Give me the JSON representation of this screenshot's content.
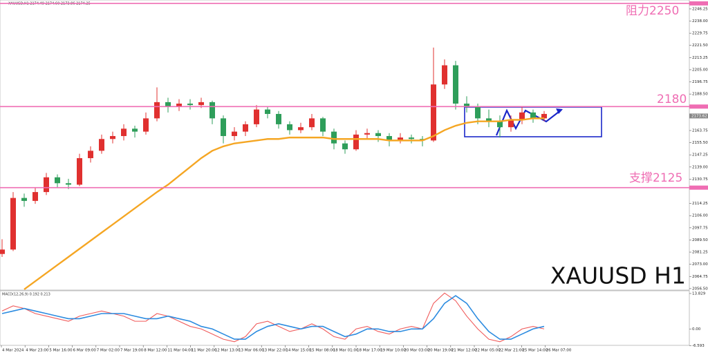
{
  "chart_data": {
    "type": "candlestick",
    "header": "XAUUSD,H1 2174.49 2174.60 2173.86 2174.25",
    "title": "XAUUSD H1",
    "up_color": "#e0302f",
    "down_color": "#2e9e5a",
    "ma_color": "#f5a623",
    "level_color": "#ef6db3",
    "levels": [
      2250,
      2180,
      2125
    ],
    "annotations": [
      "阻力2250",
      "2180",
      "支撑2125"
    ],
    "current_price": {
      "value": 2173.62,
      "label": "2173.62"
    },
    "ylim": [
      2055.5,
      2252.3
    ],
    "yticks": [
      {
        "value": 2246.25,
        "label": "2246.25"
      },
      {
        "value": 2238.0,
        "label": "2238.00"
      },
      {
        "value": 2229.75,
        "label": "2229.75"
      },
      {
        "value": 2221.5,
        "label": "2221.50"
      },
      {
        "value": 2213.25,
        "label": "2213.25"
      },
      {
        "value": 2205.0,
        "label": "2205.00"
      },
      {
        "value": 2196.75,
        "label": "2196.75"
      },
      {
        "value": 2188.5,
        "label": "2188.50"
      },
      {
        "value": 2163.75,
        "label": "2163.75"
      },
      {
        "value": 2155.5,
        "label": "2155.50"
      },
      {
        "value": 2147.25,
        "label": "2147.25"
      },
      {
        "value": 2139.0,
        "label": "2139.00"
      },
      {
        "value": 2130.75,
        "label": "2130.75"
      },
      {
        "value": 2114.25,
        "label": "2114.25"
      },
      {
        "value": 2106.0,
        "label": "2106.00"
      },
      {
        "value": 2097.75,
        "label": "2097.75"
      },
      {
        "value": 2089.5,
        "label": "2089.50"
      },
      {
        "value": 2081.25,
        "label": "2081.25"
      },
      {
        "value": 2073.0,
        "label": "2073.00"
      },
      {
        "value": 2064.75,
        "label": "2064.75"
      },
      {
        "value": 2056.5,
        "label": "2056.50"
      }
    ],
    "x_labels": [
      "4 Mar 2024",
      "4 Mar 23:00",
      "5 Mar 16:00",
      "6 Mar 09:00",
      "7 Mar 02:00",
      "7 Mar 19:00",
      "8 Mar 12:00",
      "11 Mar 04:00",
      "11 Mar 20:00",
      "12 Mar 13:00",
      "13 Mar 06:00",
      "13 Mar 22:00",
      "14 Mar 15:00",
      "15 Mar 08:00",
      "18 Mar 01:00",
      "18 Mar 17:00",
      "19 Mar 10:00",
      "20 Mar 03:00",
      "20 Mar 19:00",
      "21 Mar 12:00",
      "22 Mar 05:00",
      "22 Mar 21:00",
      "25 Mar 14:00",
      "26 Mar 07:00"
    ],
    "candles": [
      [
        2080,
        2090,
        2078,
        2083
      ],
      [
        2083,
        2122,
        2082,
        2118
      ],
      [
        2118,
        2121,
        2112,
        2116
      ],
      [
        2116,
        2125,
        2114,
        2122
      ],
      [
        2122,
        2135,
        2120,
        2132
      ],
      [
        2132,
        2134,
        2125,
        2128
      ],
      [
        2128,
        2131,
        2124,
        2127
      ],
      [
        2127,
        2148,
        2126,
        2145
      ],
      [
        2145,
        2153,
        2142,
        2150
      ],
      [
        2150,
        2161,
        2148,
        2158
      ],
      [
        2158,
        2163,
        2155,
        2160
      ],
      [
        2160,
        2168,
        2157,
        2165
      ],
      [
        2165,
        2167,
        2159,
        2163
      ],
      [
        2163,
        2176,
        2161,
        2172
      ],
      [
        2172,
        2193,
        2170,
        2183
      ],
      [
        2183,
        2186,
        2176,
        2180
      ],
      [
        2180,
        2185,
        2177,
        2182
      ],
      [
        2182,
        2185,
        2178,
        2181
      ],
      [
        2181,
        2186,
        2179,
        2183
      ],
      [
        2183,
        2184,
        2168,
        2172
      ],
      [
        2172,
        2174,
        2155,
        2160
      ],
      [
        2160,
        2166,
        2157,
        2163
      ],
      [
        2163,
        2170,
        2160,
        2168
      ],
      [
        2168,
        2181,
        2166,
        2178
      ],
      [
        2178,
        2180,
        2172,
        2175
      ],
      [
        2175,
        2177,
        2165,
        2168
      ],
      [
        2168,
        2170,
        2161,
        2164
      ],
      [
        2164,
        2169,
        2162,
        2166
      ],
      [
        2166,
        2175,
        2164,
        2172
      ],
      [
        2172,
        2173,
        2160,
        2163
      ],
      [
        2163,
        2165,
        2151,
        2155
      ],
      [
        2155,
        2157,
        2148,
        2151
      ],
      [
        2151,
        2164,
        2150,
        2161
      ],
      [
        2161,
        2165,
        2158,
        2162
      ],
      [
        2162,
        2164,
        2156,
        2160
      ],
      [
        2160,
        2162,
        2153,
        2157
      ],
      [
        2157,
        2162,
        2155,
        2159
      ],
      [
        2159,
        2161,
        2155,
        2158
      ],
      [
        2158,
        2160,
        2153,
        2157
      ],
      [
        2157,
        2220,
        2156,
        2195
      ],
      [
        2195,
        2212,
        2192,
        2208
      ],
      [
        2208,
        2211,
        2178,
        2182
      ],
      [
        2182,
        2187,
        2176,
        2180
      ],
      [
        2180,
        2182,
        2168,
        2172
      ],
      [
        2172,
        2178,
        2166,
        2170
      ],
      [
        2170,
        2174,
        2159,
        2166
      ],
      [
        2166,
        2174,
        2163,
        2171
      ],
      [
        2171,
        2180,
        2168,
        2176
      ],
      [
        2176,
        2178,
        2169,
        2172
      ],
      [
        2172,
        2177,
        2170,
        2175
      ]
    ],
    "ma": [
      null,
      null,
      2056,
      2061.5,
      2067,
      2072.5,
      2078,
      2083.5,
      2089,
      2094.5,
      2100,
      2105.5,
      2111,
      2116.5,
      2122,
      2127,
      2133,
      2139,
      2145,
      2150,
      2153,
      2155,
      2156,
      2157,
      2158,
      2158,
      2159,
      2159,
      2159,
      2159,
      2158,
      2158,
      2158,
      2158,
      2158,
      2157,
      2157,
      2157,
      2157,
      2160,
      2164,
      2167,
      2169,
      2170,
      2170,
      2170,
      2171,
      2171,
      2172,
      2172
    ],
    "macd": {
      "header": "MACD(12,26,9) 0.192 0.213",
      "ylim": [
        -6.4,
        14.9
      ],
      "yticks": [
        {
          "value": 13.829,
          "label": "13.829"
        },
        {
          "value": 0,
          "label": "0.00"
        },
        {
          "value": -6.593,
          "label": "-6.593"
        }
      ],
      "series": [
        {
          "name": "MACD",
          "color": "#f05a5a",
          "values": [
            7,
            9,
            8,
            6,
            5,
            4,
            3,
            5,
            6,
            7,
            6,
            5,
            3,
            3,
            6,
            5,
            3,
            1,
            0,
            -2,
            -4,
            -5,
            -3,
            2,
            3,
            1,
            -1,
            0,
            2,
            0,
            -3,
            -4,
            0,
            1,
            -1,
            -2,
            0,
            1,
            0,
            10,
            14,
            11,
            5,
            0,
            -4,
            -5,
            -3,
            0,
            1,
            0
          ]
        },
        {
          "name": "MA(9)",
          "color": "#2b8be0",
          "values": [
            6,
            7,
            8,
            7,
            6,
            5,
            4,
            4,
            5,
            6,
            6,
            6,
            5,
            4,
            4,
            5,
            4,
            3,
            1,
            0,
            -2,
            -4,
            -4,
            -1,
            1,
            2,
            1,
            0,
            1,
            1,
            -1,
            -3,
            -2,
            0,
            0,
            -1,
            -1,
            0,
            0,
            4,
            10,
            13,
            10,
            4,
            -1,
            -4,
            -4,
            -2,
            0,
            1
          ]
        }
      ]
    }
  }
}
